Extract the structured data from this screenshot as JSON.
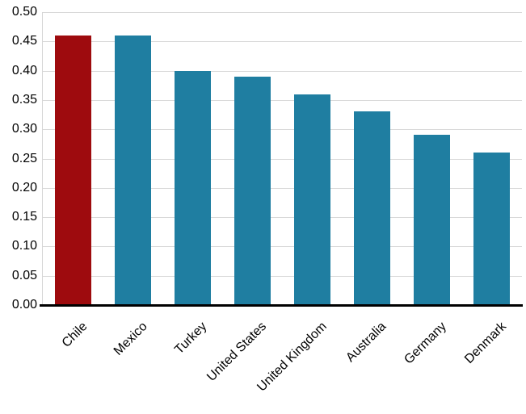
{
  "chart_data": {
    "type": "bar",
    "categories": [
      "Chile",
      "Mexico",
      "Turkey",
      "United States",
      "United Kingdom",
      "Australia",
      "Germany",
      "Denmark"
    ],
    "values": [
      0.46,
      0.46,
      0.4,
      0.39,
      0.36,
      0.33,
      0.29,
      0.26
    ],
    "title": "",
    "xlabel": "",
    "ylabel": "",
    "ylim": [
      0.0,
      0.5
    ],
    "y_ticks": [
      "0.50",
      "0.45",
      "0.40",
      "0.35",
      "0.30",
      "0.25",
      "0.20",
      "0.15",
      "0.10",
      "0.05",
      "0.00"
    ],
    "grid": true,
    "legend": "none",
    "colors": {
      "default_bar": "#1f7ea1",
      "highlight_bar": "#9e0b0e",
      "gridline": "#d9d9d9",
      "axis_line": "#000000",
      "label_text": "#000000"
    },
    "highlight_category": "Chile",
    "x_label_rotation_deg": 45
  }
}
